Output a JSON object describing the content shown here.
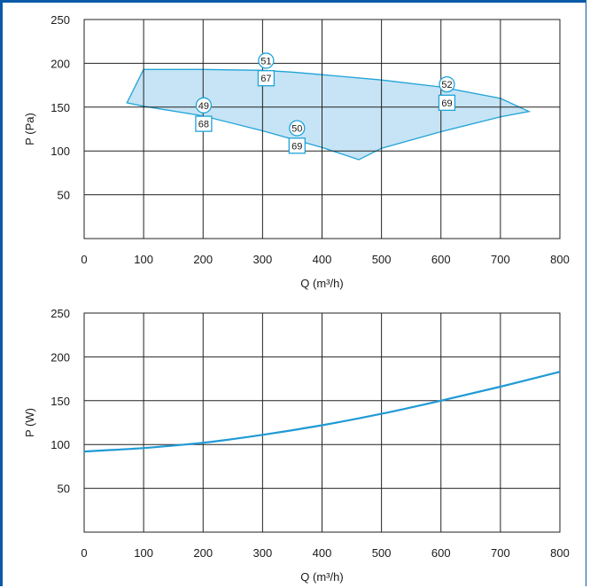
{
  "colors": {
    "frame": "#0a5aa8",
    "curve": "#1f9ad6",
    "area_fill": "#c6e4f5",
    "area_stroke": "#1fa3d8",
    "grid": "#222222"
  },
  "chart_data": [
    {
      "type": "area",
      "xlabel": "Q (m³/h)",
      "ylabel": "P (Pa)",
      "xlim": [
        0,
        800
      ],
      "ylim": [
        0,
        250
      ],
      "xticks": [
        0,
        100,
        200,
        300,
        400,
        500,
        600,
        700,
        800
      ],
      "yticks": [
        50,
        100,
        150,
        200,
        250
      ],
      "grid": true,
      "region": {
        "x": [
          72,
          100,
          200,
          300,
          350,
          400,
          500,
          600,
          700,
          748,
          700,
          600,
          500,
          462,
          400,
          300,
          200,
          100,
          72
        ],
        "y": [
          155,
          193,
          193,
          192,
          190,
          187,
          181,
          173,
          160,
          145,
          139,
          122,
          103,
          90,
          104,
          123,
          140,
          151,
          155
        ]
      },
      "annotations": [
        {
          "circle": "51",
          "box": "67",
          "x": 306,
          "y_circle": 203,
          "y_box": 183
        },
        {
          "circle": "49",
          "box": "68",
          "x": 201,
          "y_circle": 152,
          "y_box": 131
        },
        {
          "circle": "50",
          "box": "69",
          "x": 358,
          "y_circle": 126,
          "y_box": 106
        },
        {
          "circle": "52",
          "box": "69",
          "x": 610,
          "y_circle": 176,
          "y_box": 155
        }
      ]
    },
    {
      "type": "line",
      "xlabel": "Q (m³/h)",
      "ylabel": "P (W)",
      "xlim": [
        0,
        800
      ],
      "ylim": [
        0,
        250
      ],
      "xticks": [
        0,
        100,
        200,
        300,
        400,
        500,
        600,
        700,
        800
      ],
      "yticks": [
        50,
        100,
        150,
        200,
        250
      ],
      "grid": true,
      "x": [
        0,
        100,
        200,
        300,
        400,
        500,
        600,
        700,
        800
      ],
      "y": [
        92,
        96,
        102,
        111,
        122,
        135,
        150,
        166,
        183
      ]
    }
  ]
}
